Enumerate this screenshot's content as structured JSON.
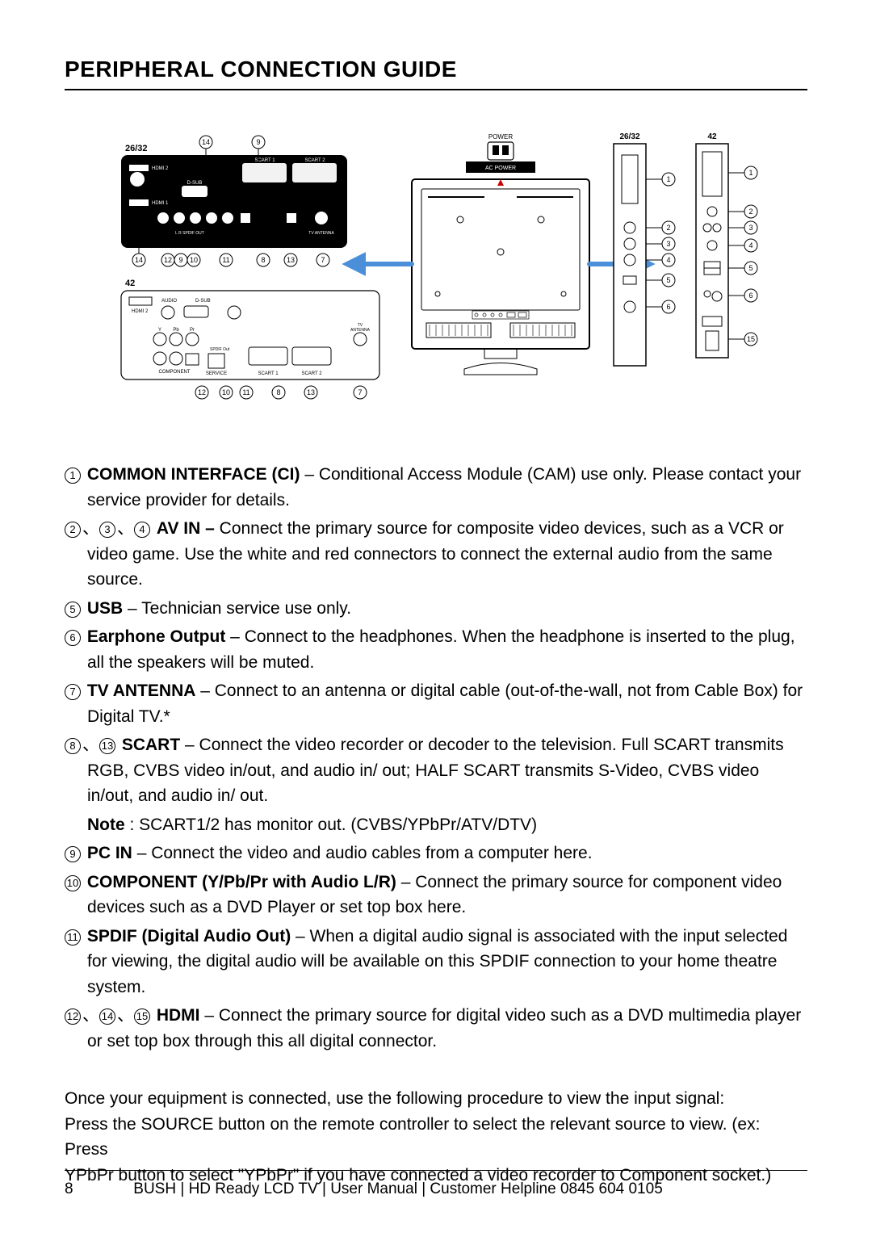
{
  "page": {
    "title": "PERIPHERAL CONNECTION GUIDE",
    "page_number": "8",
    "footer_text": "BUSH | HD Ready LCD TV | User Manual | Customer Helpline 0845 604 0105"
  },
  "diagram": {
    "panel_label_a": "26/32",
    "panel_label_b": "42",
    "power_label": "POWER",
    "acpower_label": "AC POWER",
    "side_label_a": "26/32",
    "side_label_b": "42",
    "port_labels": [
      "SCART 1",
      "SCART 2",
      "HDMI 2",
      "HDMI 1",
      "D-SUB",
      "AUDIO",
      "L",
      "R",
      "SPDIF OUT",
      "TV ANTENNA",
      "COMPONENT",
      "SERVICE",
      "Y",
      "Pb",
      "Pr"
    ]
  },
  "items": [
    {
      "numbers": [
        "1"
      ],
      "title": "COMMON INTERFACE (CI)",
      "sep": " – ",
      "body": "Conditional Access Module (CAM) use only. Please contact your service provider for details."
    },
    {
      "numbers": [
        "2",
        "3",
        "4"
      ],
      "title": "AV IN –",
      "sep": " ",
      "body": "Connect the primary source for composite video devices, such as a VCR or video game. Use the white and red connectors to connect the external audio from the same source."
    },
    {
      "numbers": [
        "5"
      ],
      "title": "USB",
      "sep": " – ",
      "body": "Technician service use only."
    },
    {
      "numbers": [
        "6"
      ],
      "title": "Earphone Output",
      "sep": " – ",
      "body": "Connect to the headphones. When the headphone is inserted to the plug, all the speakers will be muted."
    },
    {
      "numbers": [
        "7"
      ],
      "title": "TV ANTENNA",
      "sep": " – ",
      "body": "Connect to an antenna or digital cable (out-of-the-wall, not from Cable Box) for Digital TV.*"
    },
    {
      "numbers": [
        "8",
        "13"
      ],
      "title": "SCART",
      "sep": " – ",
      "body": "Connect the video recorder or decoder to the television. Full SCART transmits RGB, CVBS video in/out, and audio in/ out; HALF SCART transmits S-Video, CVBS video in/out, and audio in/ out.",
      "note_prefix": "Note",
      "note_body": " : SCART1/2 has monitor out. (CVBS/YPbPr/ATV/DTV)"
    },
    {
      "numbers": [
        "9"
      ],
      "title": "PC IN",
      "sep": " – ",
      "body": "Connect the video and audio cables from a computer here."
    },
    {
      "numbers": [
        "10"
      ],
      "title": "COMPONENT (Y/Pb/Pr with Audio L/R)",
      "sep": " – ",
      "body": "Connect the primary source for component video devices such as a DVD Player or set top box here."
    },
    {
      "numbers": [
        "11"
      ],
      "title": "SPDIF (Digital Audio Out)",
      "sep": " – ",
      "body": "When a digital audio signal is associated with the input selected for viewing, the digital audio will be available on this SPDIF connection to your home theatre system."
    },
    {
      "numbers": [
        "12",
        "14",
        "15"
      ],
      "title": "HDMI",
      "sep": " – ",
      "body": "Connect the primary source for digital video such as a DVD multimedia player or set top box through this all digital connector."
    }
  ],
  "closing": {
    "line1": "Once your equipment is connected, use the following procedure to view the input signal:",
    "line2": "Press the SOURCE button on the remote controller to select the relevant source to view. (ex: Press",
    "line3": "YPbPr button to select \"YPbPr\" if you have connected a video recorder to Component socket.)"
  },
  "style": {
    "text_color": "#000000",
    "bg_color": "#ffffff",
    "title_fontsize": 28,
    "body_fontsize": 21,
    "footer_fontsize": 19
  }
}
